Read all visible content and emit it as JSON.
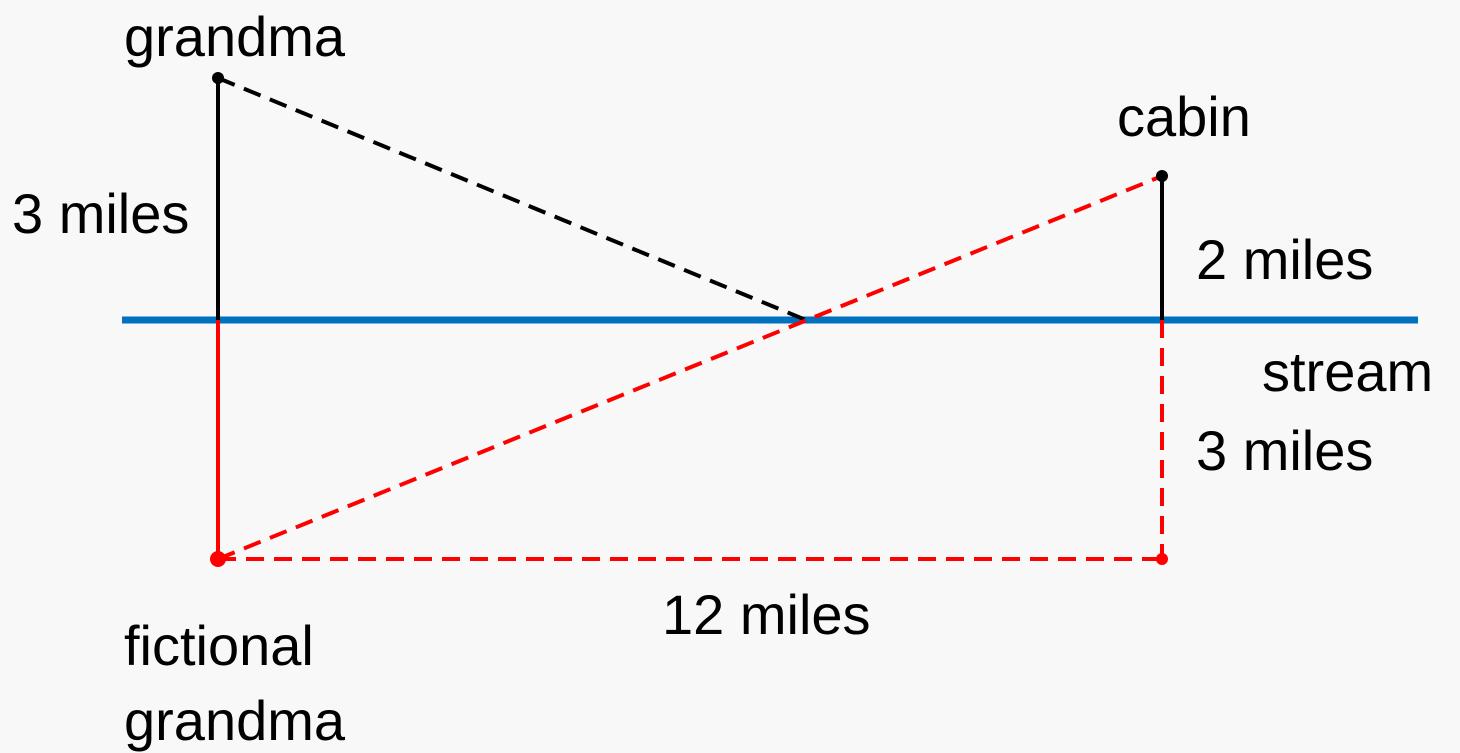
{
  "labels": {
    "grandma": "grandma",
    "cabin": "cabin",
    "grandma_distance": "3 miles",
    "cabin_distance": "2 miles",
    "stream": "stream",
    "reflected_distance": "3 miles",
    "horizontal_distance": "12 miles",
    "fictional_grandma_line1": "fictional",
    "fictional_grandma_line2": "grandma"
  },
  "colors": {
    "background": "#f8f8f8",
    "stream": "#0070c0",
    "real_path": "#000000",
    "reflected_path": "#ff0000"
  }
}
